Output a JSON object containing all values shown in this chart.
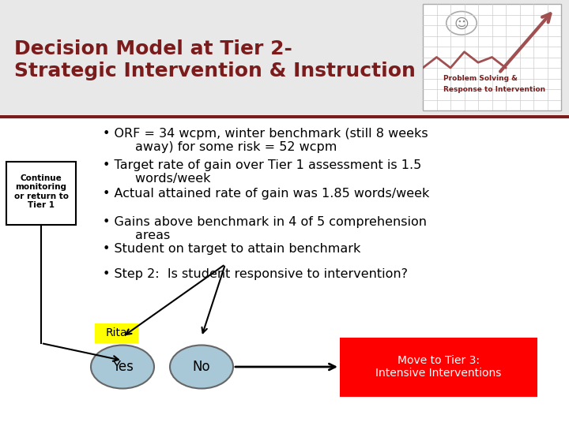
{
  "bg_color": "#f0f0f0",
  "title_line1": "Decision Model at Tier 2-",
  "title_line2": "Strategic Intervention & Instruction",
  "title_color": "#7b1c1c",
  "title_fontsize": 18,
  "separator_color": "#7b1c1c",
  "bullet_points": [
    "ORF = 34 wcpm, winter benchmark (still 8 weeks\n        away) for some risk = 52 wcpm",
    "Target rate of gain over Tier 1 assessment is 1.5\n        words/week",
    "Actual attained rate of gain was 1.85 words/week",
    "Gains above benchmark in 4 of 5 comprehension\n        areas",
    "Student on target to attain benchmark",
    "Step 2:  Is student responsive to intervention?"
  ],
  "bullet_fontsize": 11.5,
  "bullet_color": "#000000",
  "box_label": "Continue\nmonitoring\nor return to\nTier 1",
  "yes_circle_color": "#a8c8d8",
  "no_circle_color": "#a8c8d8",
  "rita_bg": "#ffff00",
  "move_box_color": "#ff0000",
  "move_text": "Move to Tier 3:\nIntensive Interventions",
  "move_text_color": "#ffffff"
}
